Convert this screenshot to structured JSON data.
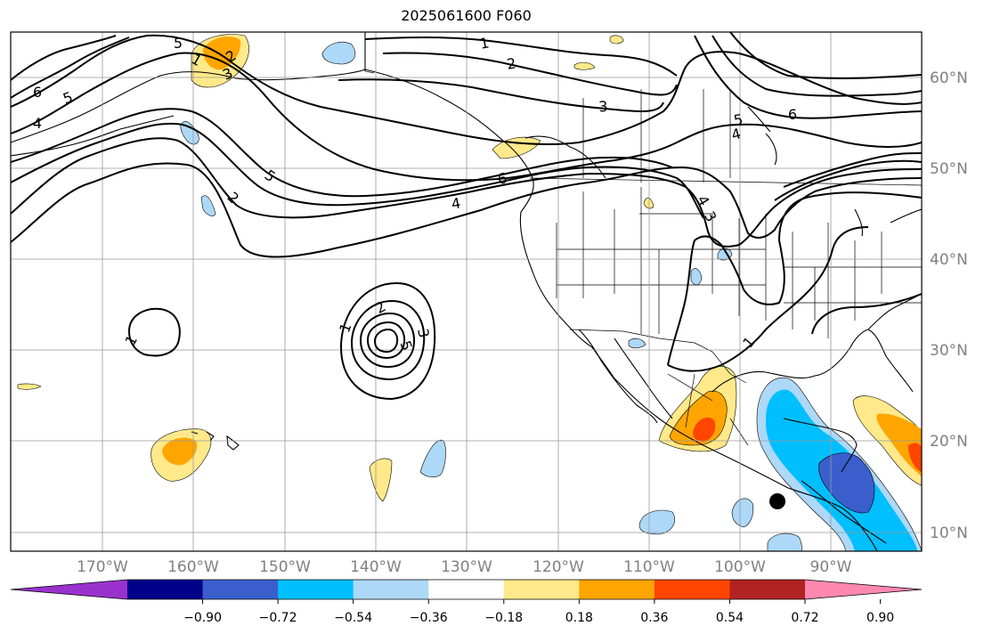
{
  "title": "2025061600 F060",
  "longitude_labels": [
    "170°W",
    "160°W",
    "150°W",
    "140°W",
    "130°W",
    "120°W",
    "110°W",
    "100°W",
    "90°W"
  ],
  "latitude_labels": [
    "60°N",
    "50°N",
    "40°N",
    "30°N",
    "20°N",
    "10°N"
  ],
  "colorbar": {
    "ticks": [
      "−0.90",
      "−0.72",
      "−0.54",
      "−0.36",
      "−0.18",
      "0.18",
      "0.36",
      "0.54",
      "0.72",
      "0.90"
    ],
    "colors": [
      "#9932cc",
      "#00008b",
      "#3a5fcd",
      "#00bfff",
      "#add8f7",
      "#ffffff",
      "#ffe98a",
      "#ffa500",
      "#ff4500",
      "#b22222",
      "#ff88b0"
    ]
  },
  "contour_labels": [
    "1",
    "2",
    "3",
    "4",
    "5",
    "6"
  ],
  "marker": {
    "color": "#000000"
  }
}
